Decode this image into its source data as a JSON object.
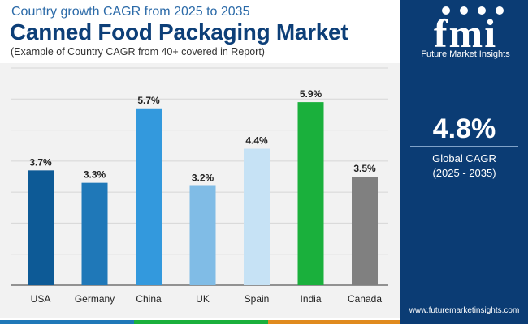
{
  "header": {
    "subtitle": "Country growth CAGR from 2025 to 2035",
    "title": "Canned Food Packaging Market",
    "note": "(Example of Country CAGR from 40+ covered in Report)"
  },
  "chart_data": {
    "type": "bar",
    "title": "Canned Food Packaging Market",
    "categories": [
      "USA",
      "Germany",
      "China",
      "UK",
      "Spain",
      "India",
      "Canada"
    ],
    "values": [
      3.7,
      3.3,
      5.7,
      3.2,
      4.4,
      5.9,
      3.5
    ],
    "value_labels": [
      "3.7%",
      "3.3%",
      "5.7%",
      "3.2%",
      "4.4%",
      "5.9%",
      "3.5%"
    ],
    "colors": [
      "#0d5a96",
      "#1f78b8",
      "#3399dd",
      "#80bce6",
      "#c6e2f5",
      "#1ab03c",
      "#808080"
    ],
    "xlabel": "",
    "ylabel": "",
    "ylim": [
      0,
      7
    ],
    "grid": true,
    "legend": "none"
  },
  "sidebar": {
    "brand_name": "Future Market Insights",
    "logo_letters": "fmi",
    "global_value": "4.8%",
    "global_label": "Global CAGR",
    "global_period": "(2025 - 2035)",
    "website": "www.futuremarketinsights.com"
  },
  "colors": {
    "sidebar_bg": "#0b3c74",
    "title": "#0d3f78",
    "subtitle": "#2b6aa8",
    "strip": [
      "#1f78b8",
      "#1ab03c",
      "#e08a1e",
      "#6b3a8f"
    ]
  }
}
